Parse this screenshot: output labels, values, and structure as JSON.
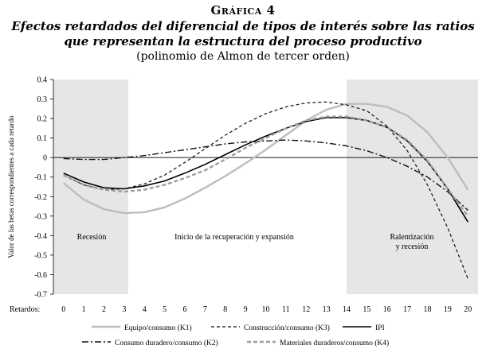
{
  "header": {
    "supertitle": "Gráfica 4",
    "title_line1": "Efectos retardados del diferencial de tipos de interés sobre las ratios",
    "title_line2": "que representan la estructura del proceso productivo",
    "subtitle": "(polinomio de Almon de tercer orden)"
  },
  "chart_data": {
    "type": "line",
    "ylabel": "Valor de las betas correspondientes a cada retardo",
    "xlabel": "Retardos:",
    "ylim": [
      -0.7,
      0.4
    ],
    "yticks": [
      "0.4",
      "0.3",
      "0.2",
      "0.1",
      "0",
      "-0.1",
      "-0.2",
      "-0.3",
      "-0.4",
      "-0.5",
      "-0.6",
      "-0.7"
    ],
    "x": [
      0,
      1,
      2,
      3,
      4,
      5,
      6,
      7,
      8,
      9,
      10,
      11,
      12,
      13,
      14,
      15,
      16,
      17,
      18,
      19,
      20
    ],
    "xtick_labels": [
      "0",
      "1",
      "2",
      "3",
      "4",
      "5",
      "6",
      "7",
      "8",
      "9",
      "10",
      "11",
      "12",
      "13",
      "14",
      "15",
      "16",
      "17",
      "18",
      "19",
      "20"
    ],
    "shaded_regions": [
      {
        "from": -0.5,
        "to": 3.2,
        "label": "Recesión",
        "color": "#e6e6e6"
      },
      {
        "from": 14,
        "to": 20.5,
        "label": "Ralentización y recesión",
        "color": "#e6e6e6"
      }
    ],
    "annotations": {
      "region_middle_label": "Inicio de la recuperación y expansión",
      "region_right_label_1": "Ralentización",
      "region_right_label_2": "y recesión"
    },
    "series": [
      {
        "name": "Equipo/consumo (K1)",
        "color": "#bdbdbd",
        "dash": "solid",
        "values": [
          -0.13,
          -0.215,
          -0.265,
          -0.285,
          -0.28,
          -0.255,
          -0.21,
          -0.155,
          -0.095,
          -0.03,
          0.04,
          0.115,
          0.19,
          0.245,
          0.275,
          0.275,
          0.26,
          0.215,
          0.13,
          0.0,
          -0.165
        ]
      },
      {
        "name": "Construcción/consumo (K3)",
        "color": "#111111",
        "dash": "dashed",
        "values": [
          -0.09,
          -0.14,
          -0.165,
          -0.16,
          -0.135,
          -0.09,
          -0.025,
          0.045,
          0.115,
          0.175,
          0.225,
          0.26,
          0.28,
          0.285,
          0.27,
          0.24,
          0.16,
          0.035,
          -0.14,
          -0.36,
          -0.62
        ]
      },
      {
        "name": "IPI",
        "color": "#000000",
        "dash": "solid",
        "values": [
          -0.08,
          -0.125,
          -0.155,
          -0.16,
          -0.145,
          -0.12,
          -0.08,
          -0.035,
          0.015,
          0.065,
          0.11,
          0.15,
          0.185,
          0.205,
          0.205,
          0.19,
          0.155,
          0.085,
          -0.02,
          -0.16,
          -0.33
        ]
      },
      {
        "name": "Consumo duradero/consumo (K2)",
        "color": "#111111",
        "dash": "dashdot",
        "values": [
          -0.005,
          -0.01,
          -0.01,
          0.0,
          0.01,
          0.025,
          0.04,
          0.055,
          0.07,
          0.08,
          0.085,
          0.09,
          0.085,
          0.075,
          0.06,
          0.035,
          0.0,
          -0.045,
          -0.1,
          -0.175,
          -0.27
        ]
      },
      {
        "name": "Materiales duraderos/consumo (K4)",
        "color": "#9e9e9e",
        "dash": "dashed-thick",
        "values": [
          -0.09,
          -0.14,
          -0.165,
          -0.175,
          -0.165,
          -0.14,
          -0.105,
          -0.065,
          -0.01,
          0.05,
          0.1,
          0.15,
          0.19,
          0.21,
          0.21,
          0.19,
          0.155,
          0.09,
          -0.015,
          -0.16,
          -0.3
        ]
      }
    ],
    "legend_position": "bottom",
    "grid": false
  }
}
